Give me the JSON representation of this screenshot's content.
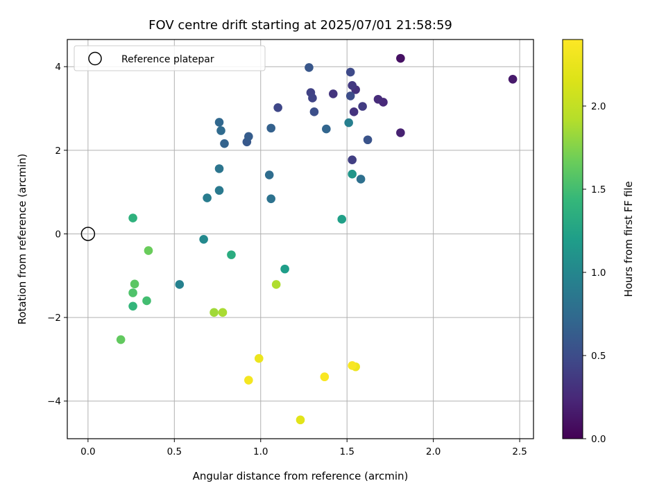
{
  "chart_data": {
    "type": "scatter",
    "title": "FOV centre drift starting at 2025/07/01 21:58:59",
    "xlabel": "Angular distance from reference (arcmin)",
    "ylabel": "Rotation from reference (arcmin)",
    "xlim": [
      -0.12,
      2.58
    ],
    "ylim": [
      -4.9,
      4.65
    ],
    "xticks": [
      0.0,
      0.5,
      1.0,
      1.5,
      2.0,
      2.5
    ],
    "xtick_labels": [
      "0.0",
      "0.5",
      "1.0",
      "1.5",
      "2.0",
      "2.5"
    ],
    "yticks": [
      -4,
      -2,
      0,
      2,
      4
    ],
    "ytick_labels": [
      "−4",
      "−2",
      "0",
      "2",
      "4"
    ],
    "grid": true,
    "legend": {
      "location": "upper-left",
      "entries": [
        "Reference platepar"
      ]
    },
    "reference_point": {
      "x": 0.0,
      "y": 0.0
    },
    "colorbar": {
      "label": "Hours from first FF file",
      "colormap": "viridis",
      "range": [
        0.0,
        2.4
      ],
      "ticks": [
        0.0,
        0.5,
        1.0,
        1.5,
        2.0
      ],
      "tick_labels": [
        "0.0",
        "0.5",
        "1.0",
        "1.5",
        "2.0"
      ]
    },
    "points": [
      {
        "x": 1.81,
        "y": 4.2,
        "h": 0.1
      },
      {
        "x": 2.46,
        "y": 3.7,
        "h": 0.15
      },
      {
        "x": 1.81,
        "y": 2.42,
        "h": 0.2
      },
      {
        "x": 1.71,
        "y": 3.15,
        "h": 0.25
      },
      {
        "x": 1.68,
        "y": 3.22,
        "h": 0.27
      },
      {
        "x": 1.55,
        "y": 3.45,
        "h": 0.3
      },
      {
        "x": 1.54,
        "y": 2.92,
        "h": 0.32
      },
      {
        "x": 1.42,
        "y": 3.35,
        "h": 0.33
      },
      {
        "x": 1.53,
        "y": 3.55,
        "h": 0.36
      },
      {
        "x": 1.59,
        "y": 3.05,
        "h": 0.38
      },
      {
        "x": 1.53,
        "y": 1.77,
        "h": 0.4
      },
      {
        "x": 1.29,
        "y": 3.38,
        "h": 0.42
      },
      {
        "x": 1.3,
        "y": 3.25,
        "h": 0.44
      },
      {
        "x": 1.1,
        "y": 3.02,
        "h": 0.46
      },
      {
        "x": 1.52,
        "y": 3.87,
        "h": 0.48
      },
      {
        "x": 1.52,
        "y": 3.3,
        "h": 0.5
      },
      {
        "x": 1.31,
        "y": 2.92,
        "h": 0.52
      },
      {
        "x": 1.62,
        "y": 2.25,
        "h": 0.55
      },
      {
        "x": 1.28,
        "y": 3.98,
        "h": 0.58
      },
      {
        "x": 0.92,
        "y": 2.2,
        "h": 0.6
      },
      {
        "x": 0.93,
        "y": 2.33,
        "h": 0.63
      },
      {
        "x": 1.06,
        "y": 2.53,
        "h": 0.66
      },
      {
        "x": 0.79,
        "y": 2.16,
        "h": 0.68
      },
      {
        "x": 1.38,
        "y": 2.51,
        "h": 0.7
      },
      {
        "x": 0.76,
        "y": 2.67,
        "h": 0.72
      },
      {
        "x": 0.77,
        "y": 2.47,
        "h": 0.75
      },
      {
        "x": 1.05,
        "y": 1.41,
        "h": 0.77
      },
      {
        "x": 1.58,
        "y": 1.31,
        "h": 0.79
      },
      {
        "x": 1.06,
        "y": 0.84,
        "h": 0.81
      },
      {
        "x": 0.76,
        "y": 1.56,
        "h": 0.84
      },
      {
        "x": 0.76,
        "y": 1.04,
        "h": 0.88
      },
      {
        "x": 0.69,
        "y": 0.86,
        "h": 0.9
      },
      {
        "x": 1.51,
        "y": 2.66,
        "h": 0.93
      },
      {
        "x": 0.53,
        "y": -1.21,
        "h": 0.95
      },
      {
        "x": 0.67,
        "y": -0.13,
        "h": 1.02
      },
      {
        "x": 1.53,
        "y": 1.43,
        "h": 1.13
      },
      {
        "x": 1.14,
        "y": -0.84,
        "h": 1.2
      },
      {
        "x": 1.47,
        "y": 0.35,
        "h": 1.22
      },
      {
        "x": 0.83,
        "y": -0.5,
        "h": 1.33
      },
      {
        "x": 0.26,
        "y": 0.38,
        "h": 1.38
      },
      {
        "x": 0.26,
        "y": -1.73,
        "h": 1.42
      },
      {
        "x": 0.34,
        "y": -1.6,
        "h": 1.5
      },
      {
        "x": 0.26,
        "y": -1.41,
        "h": 1.55
      },
      {
        "x": 0.27,
        "y": -1.2,
        "h": 1.6
      },
      {
        "x": 0.19,
        "y": -2.53,
        "h": 1.63
      },
      {
        "x": 0.35,
        "y": -0.4,
        "h": 1.66
      },
      {
        "x": 0.73,
        "y": -1.88,
        "h": 1.85
      },
      {
        "x": 0.78,
        "y": -1.88,
        "h": 1.88
      },
      {
        "x": 1.09,
        "y": -1.21,
        "h": 1.9
      },
      {
        "x": 1.23,
        "y": -4.45,
        "h": 2.2
      },
      {
        "x": 0.99,
        "y": -2.98,
        "h": 2.27
      },
      {
        "x": 1.55,
        "y": -3.18,
        "h": 2.28
      },
      {
        "x": 0.93,
        "y": -3.5,
        "h": 2.33
      },
      {
        "x": 1.53,
        "y": -3.15,
        "h": 2.36
      },
      {
        "x": 1.37,
        "y": -3.42,
        "h": 2.37
      }
    ]
  }
}
